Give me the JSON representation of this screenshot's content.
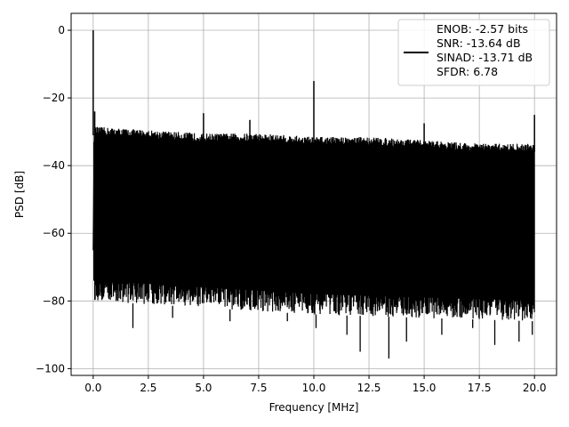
{
  "chart_data": {
    "type": "line",
    "title": "",
    "xlabel": "Frequency [MHz]",
    "ylabel": "PSD [dB]",
    "xlim": [
      -1.0,
      21.0
    ],
    "ylim": [
      -102,
      5
    ],
    "xticks": [
      0.0,
      2.5,
      5.0,
      7.5,
      10.0,
      12.5,
      15.0,
      17.5,
      20.0
    ],
    "xtick_labels": [
      "0.0",
      "2.5",
      "5.0",
      "7.5",
      "10.0",
      "12.5",
      "15.0",
      "17.5",
      "20.0"
    ],
    "yticks": [
      0,
      -20,
      -40,
      -60,
      -80,
      -100
    ],
    "ytick_labels": [
      "0",
      "−20",
      "−40",
      "−60",
      "−80",
      "−100"
    ],
    "grid": true,
    "legend_placement": "upper-right",
    "series": [
      {
        "name": "",
        "color": "#000000",
        "noise_floor_top_db": [
          [
            0.1,
            -31
          ],
          [
            2.5,
            -32
          ],
          [
            5.0,
            -33
          ],
          [
            7.5,
            -33
          ],
          [
            10.0,
            -34
          ],
          [
            12.5,
            -34
          ],
          [
            15.0,
            -35
          ],
          [
            17.5,
            -36
          ],
          [
            20.0,
            -36
          ]
        ],
        "noise_floor_bottom_db": [
          [
            0.1,
            -80
          ],
          [
            5.0,
            -82
          ],
          [
            10.0,
            -84
          ],
          [
            15.0,
            -85
          ],
          [
            20.0,
            -86
          ]
        ],
        "spikes": [
          {
            "x": 0.0,
            "y": 0
          },
          {
            "x": 0.07,
            "y": -24
          },
          {
            "x": 5.0,
            "y": -24.5
          },
          {
            "x": 7.1,
            "y": -26.5
          },
          {
            "x": 10.0,
            "y": -15
          },
          {
            "x": 15.0,
            "y": -27.5
          },
          {
            "x": 20.0,
            "y": -25
          }
        ],
        "deep_dips": [
          {
            "x": 1.8,
            "y": -88
          },
          {
            "x": 3.6,
            "y": -85
          },
          {
            "x": 6.2,
            "y": -86
          },
          {
            "x": 8.8,
            "y": -86
          },
          {
            "x": 10.1,
            "y": -88
          },
          {
            "x": 11.5,
            "y": -90
          },
          {
            "x": 12.1,
            "y": -95
          },
          {
            "x": 13.4,
            "y": -97
          },
          {
            "x": 14.2,
            "y": -92
          },
          {
            "x": 15.8,
            "y": -90
          },
          {
            "x": 17.2,
            "y": -88
          },
          {
            "x": 18.2,
            "y": -93
          },
          {
            "x": 19.3,
            "y": -92
          },
          {
            "x": 19.9,
            "y": -90
          }
        ]
      }
    ],
    "legend_entries": [
      "ENOB: -2.57 bits",
      "SNR: -13.64 dB",
      "SINAD: -13.71 dB",
      "SFDR: 6.78"
    ]
  }
}
